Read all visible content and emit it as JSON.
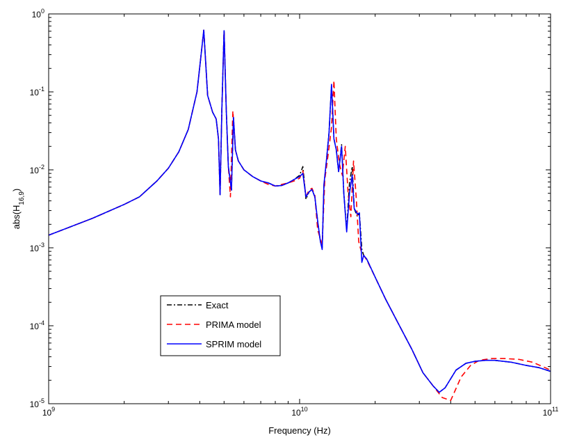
{
  "chart_data": {
    "type": "line",
    "xlabel": "Frequency (Hz)",
    "ylabel": "abs(H16,9)",
    "ylabel_parts": {
      "prefix": "abs(H",
      "subscript": "16,9",
      "suffix": ")"
    },
    "x_scale": "log",
    "y_scale": "log",
    "xlim": [
      1000000000,
      100000000000
    ],
    "ylim": [
      1e-05,
      1
    ],
    "x_ticks": [
      {
        "value": 1000000000,
        "base": "10",
        "exp": "9"
      },
      {
        "value": 10000000000,
        "base": "10",
        "exp": "10"
      },
      {
        "value": 100000000000,
        "base": "10",
        "exp": "11"
      }
    ],
    "y_ticks": [
      {
        "value": 1e-05,
        "base": "10",
        "exp": "-5"
      },
      {
        "value": 0.0001,
        "base": "10",
        "exp": "-4"
      },
      {
        "value": 0.001,
        "base": "10",
        "exp": "-3"
      },
      {
        "value": 0.01,
        "base": "10",
        "exp": "-2"
      },
      {
        "value": 0.1,
        "base": "10",
        "exp": "-1"
      },
      {
        "value": 1,
        "base": "10",
        "exp": "0"
      }
    ],
    "grid": false,
    "legend_position": "lower-left",
    "series": [
      {
        "name": "Exact",
        "color": "#000000",
        "style": "dashdot",
        "x": [
          1000000000.0,
          1500000000.0,
          2000000000.0,
          2300000000.0,
          2700000000.0,
          3000000000.0,
          3300000000.0,
          3600000000.0,
          3900000000.0,
          4050000000.0,
          4150000000.0,
          4300000000.0,
          4500000000.0,
          4650000000.0,
          4750000000.0,
          4820000000.0,
          4900000000.0,
          5000000000.0,
          5100000000.0,
          5200000000.0,
          5350000000.0,
          5450000000.0,
          5550000000.0,
          5700000000.0,
          6000000000.0,
          6500000000.0,
          7000000000.0,
          7500000000.0,
          8000000000.0,
          8500000000.0,
          9000000000.0,
          9500000000.0,
          10000000000.0,
          10300000000.0,
          10600000000.0,
          10900000000.0,
          11200000000.0,
          11500000000.0,
          11800000000.0,
          12100000000.0,
          12300000000.0,
          12500000000.0,
          12800000000.0,
          13100000000.0,
          13400000000.0,
          13700000000.0,
          14000000000.0,
          14300000000.0,
          14700000000.0,
          15000000000.0,
          15400000000.0,
          15800000000.0,
          16200000000.0,
          16500000000.0,
          17000000000.0,
          17300000000.0,
          17700000000.0,
          18000000000.0,
          18500000000.0,
          20000000000.0,
          22000000000.0,
          25000000000.0,
          28000000000.0,
          31000000000.0,
          34000000000.0,
          36000000000.0,
          38000000000.0,
          42000000000.0,
          46000000000.0,
          50000000000.0,
          55000000000.0,
          60000000000.0,
          70000000000.0,
          80000000000.0,
          90000000000.0,
          100000000000.0
        ],
        "values": [
          0.00145,
          0.0024,
          0.0036,
          0.0045,
          0.0072,
          0.0105,
          0.017,
          0.033,
          0.1,
          0.3,
          0.62,
          0.09,
          0.055,
          0.045,
          0.025,
          0.0048,
          0.06,
          0.62,
          0.06,
          0.011,
          0.0055,
          0.047,
          0.018,
          0.013,
          0.01,
          0.0082,
          0.0072,
          0.0068,
          0.0062,
          0.0063,
          0.0068,
          0.0075,
          0.0085,
          0.011,
          0.0042,
          0.0052,
          0.0056,
          0.0045,
          0.0022,
          0.0012,
          0.001,
          0.0062,
          0.0135,
          0.03,
          0.12,
          0.025,
          0.018,
          0.0095,
          0.021,
          0.005,
          0.0017,
          0.0067,
          0.011,
          0.0032,
          0.0025,
          0.0028,
          0.00095,
          0.0008,
          0.00072,
          0.00042,
          0.00022,
          0.0001,
          5e-05,
          2.5e-05,
          1.7e-05,
          1.4e-05,
          1.6e-05,
          2.7e-05,
          3.3e-05,
          3.5e-05,
          3.6e-05,
          3.6e-05,
          3.4e-05,
          3.1e-05,
          2.9e-05,
          2.6e-05
        ]
      },
      {
        "name": "PRIMA model",
        "color": "#ff0000",
        "style": "dashed",
        "x": [
          1000000000.0,
          1500000000.0,
          2000000000.0,
          2300000000.0,
          2700000000.0,
          3000000000.0,
          3300000000.0,
          3600000000.0,
          3900000000.0,
          4050000000.0,
          4150000000.0,
          4300000000.0,
          4500000000.0,
          4650000000.0,
          4750000000.0,
          4820000000.0,
          4900000000.0,
          5000000000.0,
          5100000000.0,
          5200000000.0,
          5300000000.0,
          5420000000.0,
          5550000000.0,
          5700000000.0,
          6000000000.0,
          6500000000.0,
          7000000000.0,
          7500000000.0,
          8000000000.0,
          8500000000.0,
          9000000000.0,
          9500000000.0,
          10000000000.0,
          10300000000.0,
          10600000000.0,
          10900000000.0,
          11200000000.0,
          11500000000.0,
          11800000000.0,
          12100000000.0,
          12300000000.0,
          12600000000.0,
          13000000000.0,
          13400000000.0,
          13700000000.0,
          14000000000.0,
          14400000000.0,
          14800000000.0,
          15200000000.0,
          15600000000.0,
          16000000000.0,
          16400000000.0,
          16800000000.0,
          17200000000.0,
          17600000000.0,
          18000000000.0,
          18500000000.0,
          20000000000.0,
          22000000000.0,
          25000000000.0,
          28000000000.0,
          31000000000.0,
          34000000000.0,
          37000000000.0,
          40000000000.0,
          44000000000.0,
          48000000000.0,
          52000000000.0,
          58000000000.0,
          65000000000.0,
          75000000000.0,
          85000000000.0,
          100000000000.0
        ],
        "values": [
          0.00145,
          0.0024,
          0.0036,
          0.0045,
          0.0072,
          0.0105,
          0.017,
          0.033,
          0.1,
          0.3,
          0.62,
          0.09,
          0.055,
          0.045,
          0.025,
          0.0048,
          0.06,
          0.6,
          0.06,
          0.011,
          0.0045,
          0.057,
          0.018,
          0.013,
          0.01,
          0.0082,
          0.0072,
          0.0065,
          0.0062,
          0.0065,
          0.0068,
          0.0072,
          0.0078,
          0.0097,
          0.0045,
          0.0055,
          0.0058,
          0.0047,
          0.0017,
          0.0013,
          0.0011,
          0.0075,
          0.016,
          0.035,
          0.14,
          0.025,
          0.012,
          0.0085,
          0.02,
          0.005,
          0.0025,
          0.013,
          0.0045,
          0.0012,
          0.0009,
          0.0008,
          0.0007,
          0.00042,
          0.00022,
          0.0001,
          5e-05,
          2.5e-05,
          1.7e-05,
          1.2e-05,
          1.1e-05,
          2.2e-05,
          3.1e-05,
          3.6e-05,
          3.8e-05,
          3.8e-05,
          3.7e-05,
          3.4e-05,
          2.7e-05
        ]
      },
      {
        "name": "SPRIM model",
        "color": "#0000ff",
        "style": "solid",
        "x": [
          1000000000.0,
          1500000000.0,
          2000000000.0,
          2300000000.0,
          2700000000.0,
          3000000000.0,
          3300000000.0,
          3600000000.0,
          3900000000.0,
          4050000000.0,
          4150000000.0,
          4300000000.0,
          4500000000.0,
          4650000000.0,
          4750000000.0,
          4820000000.0,
          4900000000.0,
          5000000000.0,
          5100000000.0,
          5200000000.0,
          5350000000.0,
          5450000000.0,
          5550000000.0,
          5700000000.0,
          6000000000.0,
          6500000000.0,
          7000000000.0,
          7500000000.0,
          8000000000.0,
          8500000000.0,
          9000000000.0,
          9500000000.0,
          10000000000.0,
          10300000000.0,
          10600000000.0,
          10900000000.0,
          11200000000.0,
          11500000000.0,
          11800000000.0,
          12100000000.0,
          12300000000.0,
          12500000000.0,
          12800000000.0,
          13100000000.0,
          13400000000.0,
          13700000000.0,
          14000000000.0,
          14300000000.0,
          14700000000.0,
          15000000000.0,
          15400000000.0,
          15800000000.0,
          16200000000.0,
          16500000000.0,
          17000000000.0,
          17300000000.0,
          17700000000.0,
          18000000000.0,
          18500000000.0,
          20000000000.0,
          22000000000.0,
          25000000000.0,
          28000000000.0,
          31000000000.0,
          34000000000.0,
          36000000000.0,
          38000000000.0,
          42000000000.0,
          46000000000.0,
          50000000000.0,
          55000000000.0,
          60000000000.0,
          70000000000.0,
          80000000000.0,
          90000000000.0,
          100000000000.0
        ],
        "values": [
          0.00145,
          0.0024,
          0.0036,
          0.0045,
          0.0072,
          0.0105,
          0.017,
          0.033,
          0.1,
          0.3,
          0.62,
          0.09,
          0.055,
          0.045,
          0.025,
          0.0048,
          0.06,
          0.61,
          0.06,
          0.011,
          0.0055,
          0.047,
          0.018,
          0.013,
          0.01,
          0.0082,
          0.0072,
          0.0068,
          0.0062,
          0.0063,
          0.0068,
          0.0075,
          0.0082,
          0.009,
          0.0045,
          0.0052,
          0.0056,
          0.0045,
          0.0022,
          0.0012,
          0.00095,
          0.0065,
          0.0135,
          0.03,
          0.125,
          0.025,
          0.018,
          0.0095,
          0.02,
          0.005,
          0.0016,
          0.005,
          0.0085,
          0.0032,
          0.0027,
          0.0028,
          0.00065,
          0.0008,
          0.00072,
          0.00042,
          0.00022,
          0.0001,
          5e-05,
          2.5e-05,
          1.7e-05,
          1.4e-05,
          1.6e-05,
          2.7e-05,
          3.3e-05,
          3.5e-05,
          3.6e-05,
          3.6e-05,
          3.4e-05,
          3.1e-05,
          2.9e-05,
          2.6e-05
        ]
      }
    ]
  }
}
